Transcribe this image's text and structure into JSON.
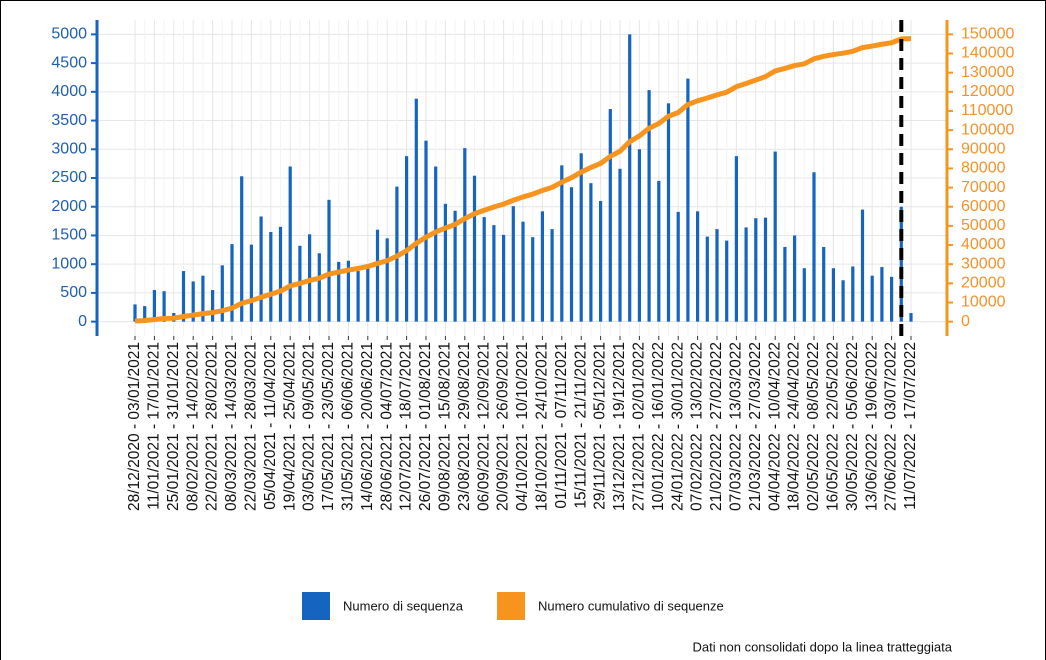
{
  "chart_data": {
    "type": "bar_line",
    "categories": [
      "28/12/2020 - 03/01/2021",
      null,
      "11/01/2021 - 17/01/2021",
      null,
      "25/01/2021 - 31/01/2021",
      null,
      "08/02/2021 - 14/02/2021",
      null,
      "22/02/2021 - 28/02/2021",
      null,
      "08/03/2021 - 14/03/2021",
      null,
      "22/03/2021 - 28/03/2021",
      null,
      "05/04/2021 - 11/04/2021",
      null,
      "19/04/2021 - 25/04/2021",
      null,
      "03/05/2021 - 09/05/2021",
      null,
      "17/05/2021 - 23/05/2021",
      null,
      "31/05/2021 - 06/06/2021",
      null,
      "14/06/2021 - 20/06/2021",
      null,
      "28/06/2021 - 04/07/2021",
      null,
      "12/07/2021 - 18/07/2021",
      null,
      "26/07/2021 - 01/08/2021",
      null,
      "09/08/2021 - 15/08/2021",
      null,
      "23/08/2021 - 29/08/2021",
      null,
      "06/09/2021 - 12/09/2021",
      null,
      "20/09/2021 - 26/09/2021",
      null,
      "04/10/2021 - 10/10/2021",
      null,
      "18/10/2021 - 24/10/2021",
      null,
      "01/11/2021 - 07/11/2021",
      null,
      "15/11/2021 - 21/11/2021",
      null,
      "29/11/2021 - 05/12/2021",
      null,
      "13/12/2021 - 19/12/2021",
      null,
      "27/12/2021 - 02/01/2022",
      null,
      "10/01/2022 - 16/01/2022",
      null,
      "24/01/2022 - 30/01/2022",
      null,
      "07/02/2022 - 13/02/2022",
      null,
      "21/02/2022 - 27/02/2022",
      null,
      "07/03/2022 - 13/03/2022",
      null,
      "21/03/2022 - 27/03/2022",
      null,
      "04/04/2022 - 10/04/2022",
      null,
      "18/04/2022 - 24/04/2022",
      null,
      "02/05/2022 - 08/05/2022",
      null,
      "16/05/2022 - 22/05/2022",
      null,
      "30/05/2022 - 05/06/2022",
      null,
      "13/06/2022 - 19/06/2022",
      null,
      "27/06/2022 - 03/07/2022",
      null,
      "11/07/2022 - 17/07/2022"
    ],
    "series": [
      {
        "name": "Numero di sequenza",
        "type": "bar",
        "color": "#1565c0",
        "values": [
          300,
          270,
          550,
          530,
          150,
          880,
          700,
          800,
          550,
          980,
          1350,
          2530,
          1340,
          1830,
          1560,
          1650,
          2700,
          1320,
          1520,
          1190,
          2120,
          1040,
          1060,
          880,
          1000,
          1600,
          1450,
          2350,
          2880,
          3880,
          3150,
          2700,
          2050,
          1930,
          3020,
          2540,
          1820,
          1680,
          1510,
          2010,
          1740,
          1470,
          1920,
          1610,
          2720,
          2340,
          2930,
          2410,
          2100,
          3700,
          2660,
          5000,
          3000,
          4030,
          2450,
          3800,
          1910,
          4230,
          1920,
          1480,
          1610,
          1410,
          2880,
          1640,
          1800,
          1810,
          2960,
          1300,
          1500,
          930,
          2600,
          1300,
          930,
          720,
          960,
          1950,
          800,
          950,
          780,
          2000,
          150
        ]
      },
      {
        "name": "Numero cumulativo di sequenze",
        "type": "line",
        "axis": "y2",
        "color": "#f7941d",
        "values": [
          300,
          570,
          1120,
          1650,
          1800,
          2680,
          3380,
          4180,
          4730,
          5710,
          7060,
          9590,
          10930,
          12760,
          14320,
          15970,
          18670,
          19990,
          21510,
          22700,
          24820,
          25860,
          26920,
          27800,
          28800,
          30400,
          31850,
          34200,
          37080,
          40960,
          44110,
          46810,
          48860,
          50790,
          53810,
          56350,
          58170,
          59850,
          61360,
          63370,
          65110,
          66580,
          68500,
          70110,
          72830,
          75170,
          78100,
          80510,
          82610,
          86310,
          88970,
          93970,
          96970,
          101000,
          103450,
          107250,
          109160,
          113390,
          115310,
          116790,
          118400,
          119810,
          122690,
          124330,
          126130,
          127940,
          130900,
          132200,
          133700,
          134630,
          137230,
          138530,
          139460,
          140180,
          141140,
          143090,
          143890,
          144840,
          145620,
          147620,
          147770
        ]
      }
    ],
    "ylim": [
      -250,
      5250
    ],
    "yticks": [
      0,
      500,
      1000,
      1500,
      2000,
      2500,
      3000,
      3500,
      4000,
      4500,
      5000
    ],
    "y2lim": [
      -7500,
      157500
    ],
    "y2ticks": [
      0,
      10000,
      20000,
      30000,
      40000,
      50000,
      60000,
      70000,
      80000,
      90000,
      100000,
      110000,
      120000,
      130000,
      140000,
      150000
    ],
    "grid": true,
    "dashed_line_at": 79,
    "note": "Dati non consolidati dopo la linea tratteggiata"
  }
}
